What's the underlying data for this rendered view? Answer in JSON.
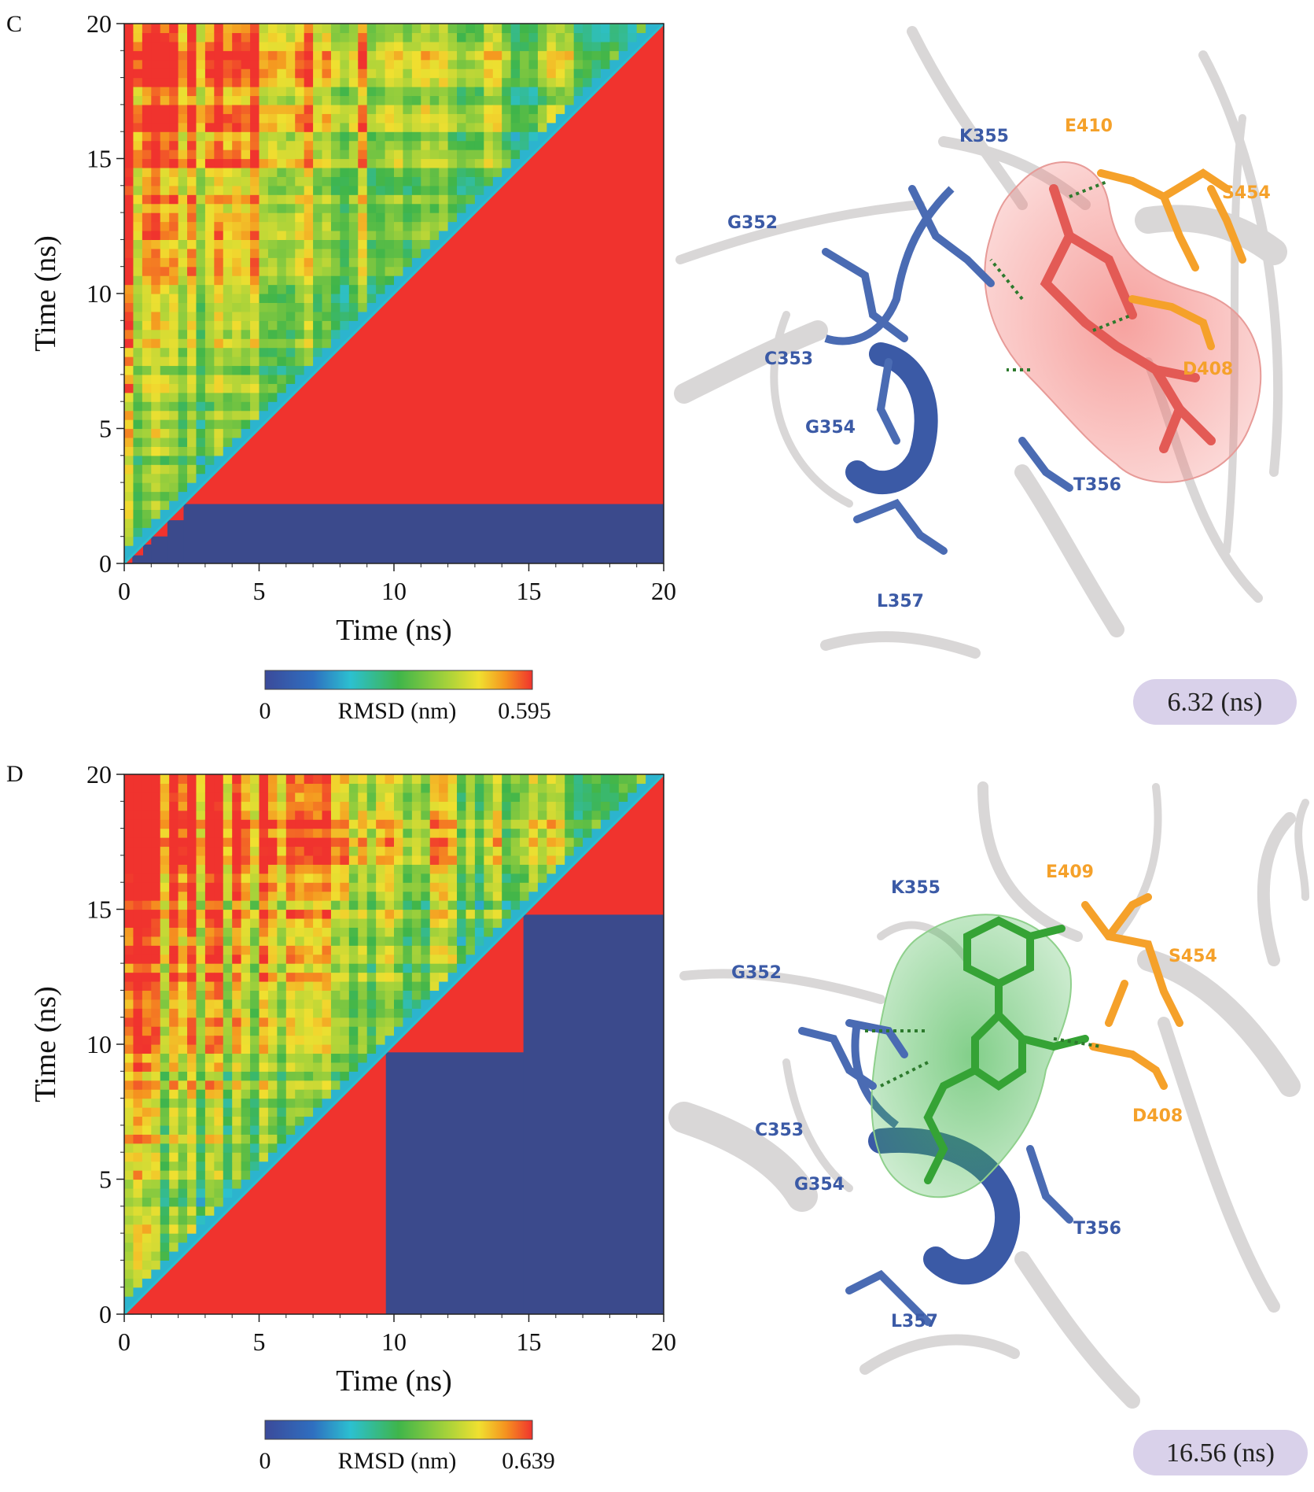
{
  "panels": [
    {
      "letter": "C",
      "chart_data": {
        "type": "heatmap",
        "xlabel": "Time (ns)",
        "ylabel": "Time (ns)",
        "xlim": [
          0,
          20
        ],
        "ylim": [
          0,
          20
        ],
        "xticks": [
          "0",
          "5",
          "10",
          "15",
          "20"
        ],
        "yticks": [
          "0",
          "5",
          "10",
          "15",
          "20"
        ],
        "colorbar": {
          "label": "RMSD (nm)",
          "min_label": "0",
          "max_label": "0.595",
          "min": 0,
          "max": 0.595
        },
        "cluster_boundaries_ns": [
          0.3,
          0.7,
          1.0,
          1.6,
          2.2
        ],
        "colors": {
          "low": "#3b4a9a",
          "mid": "#2cb8c2",
          "green": "#3fb54a",
          "yellow": "#e6d62a",
          "high": "#f0332e",
          "lower_fill": "#3b4a8c"
        }
      },
      "snapshot": {
        "time_label": "6.32 (ns)",
        "ligand_color": "#f2706b",
        "residues_blue": [
          "K355",
          "G352",
          "C353",
          "G354",
          "T356",
          "L357"
        ],
        "residues_orange": [
          "E410",
          "S454",
          "D408"
        ]
      }
    },
    {
      "letter": "D",
      "chart_data": {
        "type": "heatmap",
        "xlabel": "Time (ns)",
        "ylabel": "Time (ns)",
        "xlim": [
          0,
          20
        ],
        "ylim": [
          0,
          20
        ],
        "xticks": [
          "0",
          "5",
          "10",
          "15",
          "20"
        ],
        "yticks": [
          "0",
          "5",
          "10",
          "15",
          "20"
        ],
        "colorbar": {
          "label": "RMSD (nm)",
          "min_label": "0",
          "max_label": "0.639",
          "min": 0,
          "max": 0.639
        },
        "cluster_boundaries_ns": [
          9.7,
          14.8
        ],
        "colors": {
          "low": "#3b4a9a",
          "mid": "#2cb8c2",
          "green": "#3fb54a",
          "yellow": "#e6d62a",
          "high": "#f0332e",
          "lower_fill": "#3b4a8c"
        }
      },
      "snapshot": {
        "time_label": "16.56 (ns)",
        "ligand_color": "#3aa837",
        "residues_blue": [
          "K355",
          "G352",
          "C353",
          "G354",
          "T356",
          "L357"
        ],
        "residues_orange": [
          "E409",
          "S454",
          "D408"
        ]
      }
    }
  ]
}
